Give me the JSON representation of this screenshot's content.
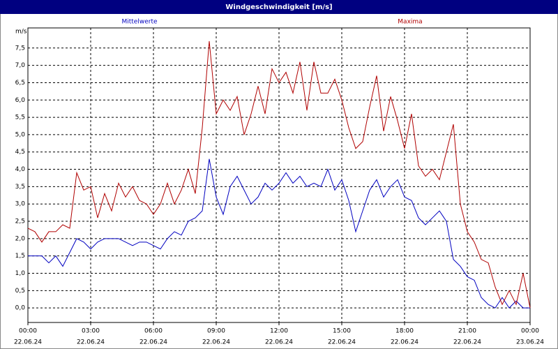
{
  "chart_data": {
    "type": "line",
    "title": "Windgeschwindigkeit [m/s]",
    "y_unit": "m/s",
    "x": [
      0,
      20,
      40,
      60,
      80,
      100,
      120,
      140,
      160,
      180,
      200,
      220,
      240,
      260,
      280,
      300,
      320,
      340,
      360,
      380,
      400,
      420,
      440,
      460,
      480,
      500,
      520,
      540,
      560,
      580,
      600,
      620,
      640,
      660,
      680,
      700,
      720,
      740,
      760,
      780,
      800,
      820,
      840,
      860,
      880,
      900,
      920,
      940,
      960,
      980,
      1000,
      1020,
      1040,
      1060,
      1080,
      1100,
      1120,
      1140,
      1160,
      1180,
      1200,
      1220,
      1240,
      1260,
      1280,
      1300,
      1320,
      1340,
      1360,
      1380,
      1400,
      1420,
      1440
    ],
    "series": [
      {
        "name": "Mittelwerte",
        "color": "#0000c0",
        "values": [
          1.5,
          1.5,
          1.5,
          1.3,
          1.5,
          1.2,
          1.6,
          2.0,
          1.9,
          1.7,
          1.9,
          2.0,
          2.0,
          2.0,
          1.9,
          1.8,
          1.9,
          1.9,
          1.8,
          1.7,
          2.0,
          2.2,
          2.1,
          2.5,
          2.6,
          2.8,
          4.3,
          3.2,
          2.7,
          3.5,
          3.8,
          3.4,
          3.0,
          3.2,
          3.6,
          3.4,
          3.6,
          3.9,
          3.6,
          3.8,
          3.5,
          3.6,
          3.5,
          4.0,
          3.4,
          3.7,
          3.1,
          2.2,
          2.8,
          3.4,
          3.7,
          3.2,
          3.5,
          3.7,
          3.2,
          3.1,
          2.6,
          2.4,
          2.6,
          2.8,
          2.5,
          1.4,
          1.2,
          0.9,
          0.8,
          0.3,
          0.1,
          0.0,
          0.3,
          0.0,
          0.2,
          0.0,
          0.0
        ]
      },
      {
        "name": "Maxima",
        "color": "#b00000",
        "values": [
          2.3,
          2.2,
          1.9,
          2.2,
          2.2,
          2.4,
          2.3,
          3.9,
          3.4,
          3.5,
          2.6,
          3.3,
          2.8,
          3.6,
          3.2,
          3.5,
          3.1,
          3.0,
          2.7,
          3.0,
          3.6,
          3.0,
          3.4,
          4.0,
          3.3,
          5.2,
          7.7,
          5.6,
          6.0,
          5.7,
          6.1,
          5.0,
          5.6,
          6.4,
          5.6,
          6.9,
          6.5,
          6.8,
          6.2,
          7.1,
          5.7,
          7.1,
          6.2,
          6.2,
          6.6,
          6.0,
          5.2,
          4.6,
          4.8,
          5.8,
          6.7,
          5.1,
          6.1,
          5.4,
          4.6,
          5.6,
          4.1,
          3.8,
          4.0,
          3.7,
          4.5,
          5.3,
          3.0,
          2.2,
          1.9,
          1.4,
          1.3,
          0.6,
          0.1,
          0.5,
          0.1,
          1.0,
          0.0
        ]
      }
    ],
    "xlim": [
      0,
      1440
    ],
    "xticks": [
      {
        "value": 0,
        "label": "00:00",
        "date": "22.06.24"
      },
      {
        "value": 180,
        "label": "03:00",
        "date": "22.06.24"
      },
      {
        "value": 360,
        "label": "06:00",
        "date": "22.06.24"
      },
      {
        "value": 540,
        "label": "09:00",
        "date": "22.06.24"
      },
      {
        "value": 720,
        "label": "12:00",
        "date": "22.06.24"
      },
      {
        "value": 900,
        "label": "15:00",
        "date": "22.06.24"
      },
      {
        "value": 1080,
        "label": "18:00",
        "date": "22.06.24"
      },
      {
        "value": 1260,
        "label": "21:00",
        "date": "22.06.24"
      },
      {
        "value": 1440,
        "label": "00:00",
        "date": "23.06.24"
      }
    ],
    "ylim": [
      -0.42,
      8.08
    ],
    "yticks": [
      {
        "value": 0,
        "label": "0,0"
      },
      {
        "value": 0.5,
        "label": "0,5"
      },
      {
        "value": 1,
        "label": "1,0"
      },
      {
        "value": 1.5,
        "label": "1,5"
      },
      {
        "value": 2,
        "label": "2,0"
      },
      {
        "value": 2.5,
        "label": "2,5"
      },
      {
        "value": 3,
        "label": "3,0"
      },
      {
        "value": 3.5,
        "label": "3,5"
      },
      {
        "value": 4,
        "label": "4,0"
      },
      {
        "value": 4.5,
        "label": "4,5"
      },
      {
        "value": 5,
        "label": "5,0"
      },
      {
        "value": 5.5,
        "label": "5,5"
      },
      {
        "value": 6,
        "label": "6,0"
      },
      {
        "value": 6.5,
        "label": "6,5"
      },
      {
        "value": 7,
        "label": "7,0"
      },
      {
        "value": 7.5,
        "label": "7,5"
      }
    ],
    "grid": true
  }
}
